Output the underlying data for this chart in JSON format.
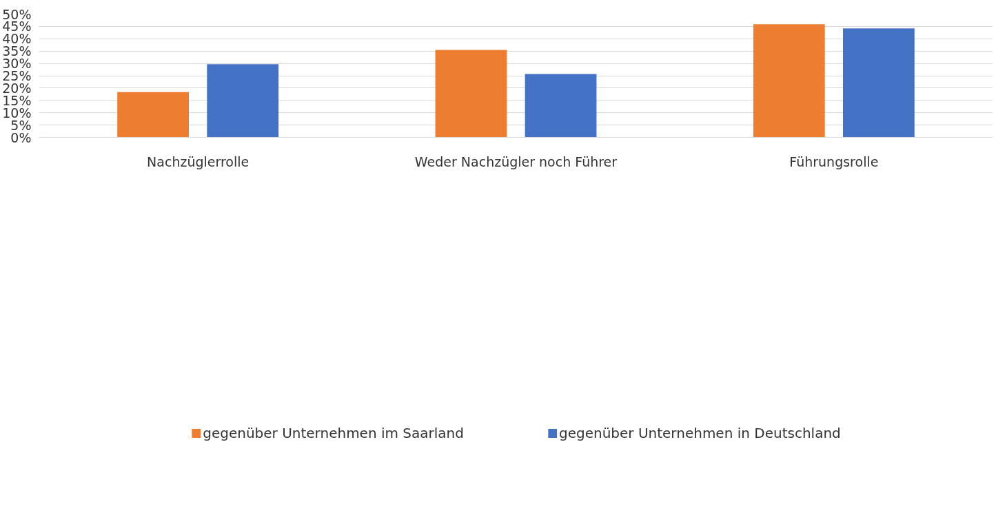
{
  "chart_data": {
    "type": "bar",
    "categories": [
      "Nachzüglerrolle",
      "Weder Nachzügler noch Führer",
      "Führungsrolle"
    ],
    "series": [
      {
        "name": "gegenüber Unternehmen im Saarland",
        "color": "#ed7d31",
        "values": [
          18.4,
          35.5,
          45.9
        ]
      },
      {
        "name": "gegenüber Unternehmen in Deutschland",
        "color": "#4472c4",
        "values": [
          29.7,
          25.7,
          44.2
        ]
      }
    ],
    "ylim": [
      0,
      50
    ],
    "yticks": [
      {
        "value": 0,
        "label": "0%"
      },
      {
        "value": 5,
        "label": "5%"
      },
      {
        "value": 10,
        "label": "10%"
      },
      {
        "value": 15,
        "label": "15%"
      },
      {
        "value": 20,
        "label": "20%"
      },
      {
        "value": 25,
        "label": "25%"
      },
      {
        "value": 30,
        "label": "30%"
      },
      {
        "value": 35,
        "label": "35%"
      },
      {
        "value": 40,
        "label": "40%"
      },
      {
        "value": 45,
        "label": "45%"
      },
      {
        "value": 50,
        "label": "50%"
      }
    ],
    "grid": "y",
    "legend": "bottom"
  }
}
